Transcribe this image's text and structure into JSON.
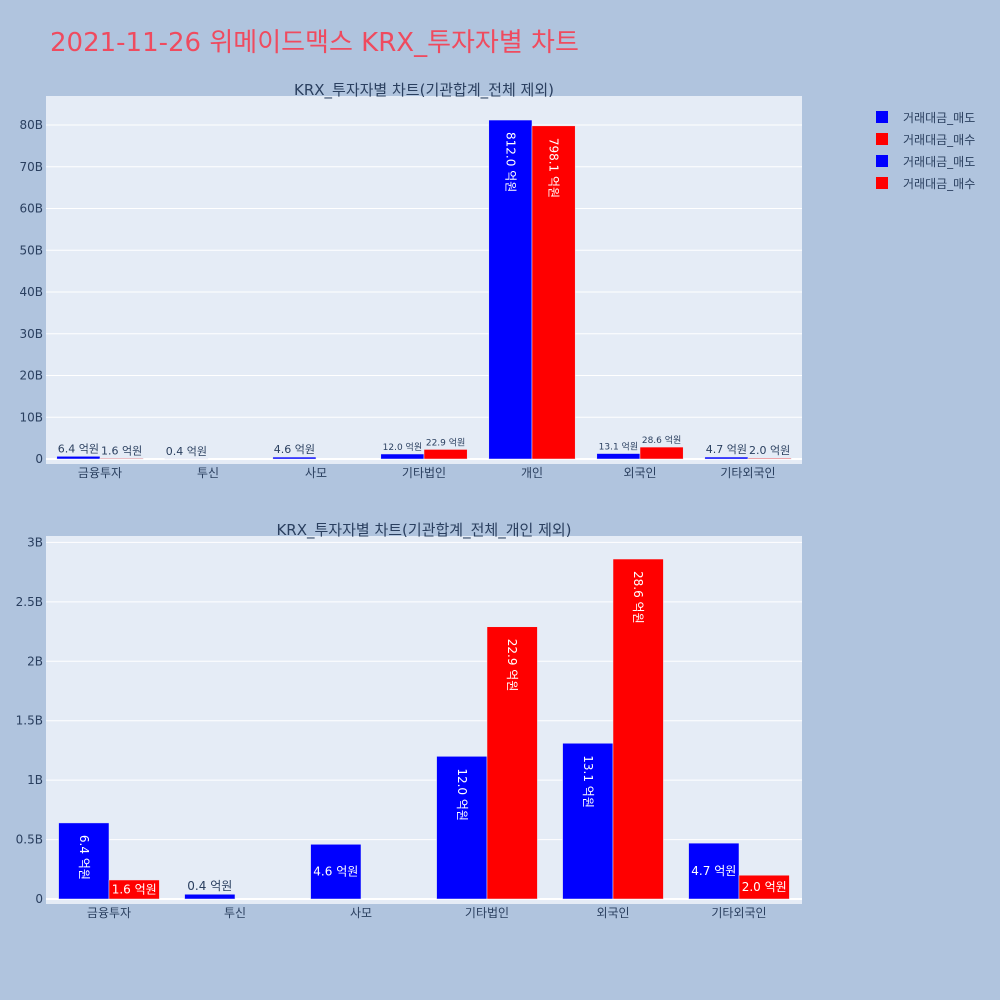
{
  "title": "2021-11-26 위메이드맥스 KRX_투자자별 차트",
  "colors": {
    "background": "#b0c4de",
    "plot_bg": "#e5ecf6",
    "title": "#ef4b5f",
    "sell": "#0000ff",
    "buy": "#ff0000",
    "text": "#2a3f5f"
  },
  "legend": [
    {
      "label": "거래대금_매도",
      "color": "#0000ff"
    },
    {
      "label": "거래대금_매수",
      "color": "#ff0000"
    },
    {
      "label": "거래대금_매도",
      "color": "#0000ff"
    },
    {
      "label": "거래대금_매수",
      "color": "#ff0000"
    }
  ],
  "chart_data": [
    {
      "type": "bar",
      "title": "KRX_투자자별 차트(기관합계_전체 제외)",
      "categories": [
        "금융투자",
        "투신",
        "사모",
        "기타법인",
        "개인",
        "외국인",
        "기타외국인"
      ],
      "ylim": [
        0,
        86000000000
      ],
      "y_ticks": [
        0,
        10000000000,
        20000000000,
        30000000000,
        40000000000,
        50000000000,
        60000000000,
        70000000000,
        80000000000
      ],
      "y_tick_labels": [
        "0",
        "10B",
        "20B",
        "30B",
        "40B",
        "50B",
        "60B",
        "70B",
        "80B"
      ],
      "series": [
        {
          "name": "거래대금_매도",
          "color": "#0000ff",
          "values": [
            640000000,
            40000000,
            460000000,
            1200000000,
            81200000000,
            1310000000,
            470000000
          ],
          "labels": [
            "6.4 억원",
            "0.4 억원",
            "4.6 억원",
            "12.0 억원",
            "812.0 억원",
            "13.1 억원",
            "4.7 억원"
          ]
        },
        {
          "name": "거래대금_매수",
          "color": "#ff0000",
          "values": [
            160000000,
            0,
            0,
            2290000000,
            79810000000,
            2860000000,
            200000000
          ],
          "labels": [
            "1.6 억원",
            "",
            "",
            "22.9 억원",
            "798.1 억원",
            "28.6 억원",
            "2.0 억원"
          ]
        }
      ]
    },
    {
      "type": "bar",
      "title": "KRX_투자자별 차트(기관합계_전체_개인 제외)",
      "categories": [
        "금융투자",
        "투신",
        "사모",
        "기타법인",
        "외국인",
        "기타외국인"
      ],
      "ylim": [
        0,
        3020000000
      ],
      "y_ticks": [
        0,
        500000000,
        1000000000,
        1500000000,
        2000000000,
        2500000000,
        3000000000
      ],
      "y_tick_labels": [
        "0",
        "0.5B",
        "1B",
        "1.5B",
        "2B",
        "2.5B",
        "3B"
      ],
      "series": [
        {
          "name": "거래대금_매도",
          "color": "#0000ff",
          "values": [
            640000000,
            40000000,
            460000000,
            1200000000,
            1310000000,
            470000000
          ],
          "labels": [
            "6.4 억원",
            "0.4 억원",
            "4.6 억원",
            "12.0 억원",
            "13.1 억원",
            "4.7 억원"
          ]
        },
        {
          "name": "거래대금_매수",
          "color": "#ff0000",
          "values": [
            160000000,
            0,
            0,
            2290000000,
            2860000000,
            200000000
          ],
          "labels": [
            "1.6 억원",
            "",
            "",
            "22.9 억원",
            "28.6 억원",
            "2.0 억원"
          ]
        }
      ]
    }
  ]
}
